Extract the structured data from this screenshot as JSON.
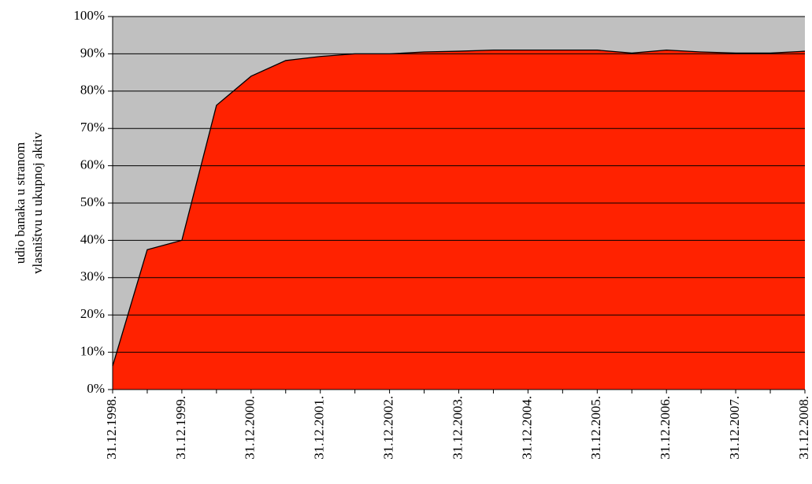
{
  "chart_data": {
    "type": "area",
    "ylabel": [
      "udio banaka u stranom",
      "vlasništvu u ukupnoj aktiv"
    ],
    "categories": [
      "31.12.1998.",
      null,
      "31.12.1999.",
      null,
      "31.12.2000.",
      null,
      "31.12.2001.",
      null,
      "31.12.2002.",
      null,
      "31.12.2003.",
      null,
      "31.12.2004.",
      null,
      "31.12.2005.",
      null,
      "31.12.2006.",
      null,
      "31.12.2007.",
      null,
      "31.12.2008."
    ],
    "values": [
      6.3,
      37.5,
      40,
      76.2,
      84,
      88.2,
      89.3,
      90,
      90,
      90.5,
      90.7,
      91,
      91,
      91,
      91,
      90.2,
      91,
      90.5,
      90.2,
      90.2,
      90.7
    ],
    "color": "#ff2200",
    "ylim": [
      0,
      100
    ],
    "yticks": [
      {
        "value": 0,
        "label": "0%"
      },
      {
        "value": 10,
        "label": "10%"
      },
      {
        "value": 20,
        "label": "20%"
      },
      {
        "value": 30,
        "label": "30%"
      },
      {
        "value": 40,
        "label": "40%"
      },
      {
        "value": 50,
        "label": "50%"
      },
      {
        "value": 60,
        "label": "60%"
      },
      {
        "value": 70,
        "label": "70%"
      },
      {
        "value": 80,
        "label": "80%"
      },
      {
        "value": 90,
        "label": "90%"
      },
      {
        "value": 100,
        "label": "100%"
      }
    ],
    "grid": true
  }
}
